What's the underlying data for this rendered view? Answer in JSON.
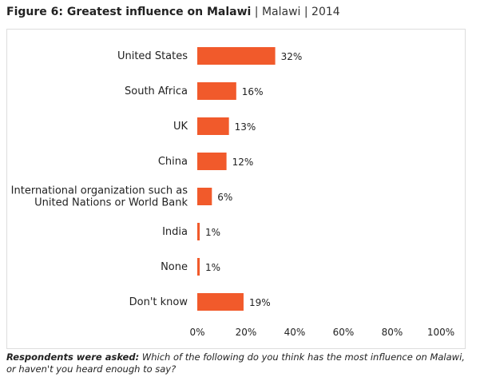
{
  "header": {
    "title": "Figure 6: Greatest influence on Malawi",
    "country": "Malawi",
    "year": "2014",
    "sep": "|"
  },
  "chart_data": {
    "type": "bar",
    "orientation": "horizontal",
    "categories": [
      "United States",
      "South Africa",
      "UK",
      "China",
      "International organization such as\nUnited Nations or World Bank",
      "India",
      "None",
      "Don't know"
    ],
    "values": [
      32,
      16,
      13,
      12,
      6,
      1,
      1,
      19
    ],
    "value_labels": [
      "32%",
      "16%",
      "13%",
      "12%",
      "6%",
      "1%",
      "1%",
      "19%"
    ],
    "xlim": [
      0,
      100
    ],
    "xticks": [
      "0%",
      "20%",
      "40%",
      "60%",
      "80%",
      "100%"
    ],
    "bar_color": "#f15a2b",
    "grid": false
  },
  "footnote": {
    "label": "Respondents were asked:",
    "text": "Which of the following do you think has the most influence on Malawi, or haven't you heard enough to say?"
  }
}
